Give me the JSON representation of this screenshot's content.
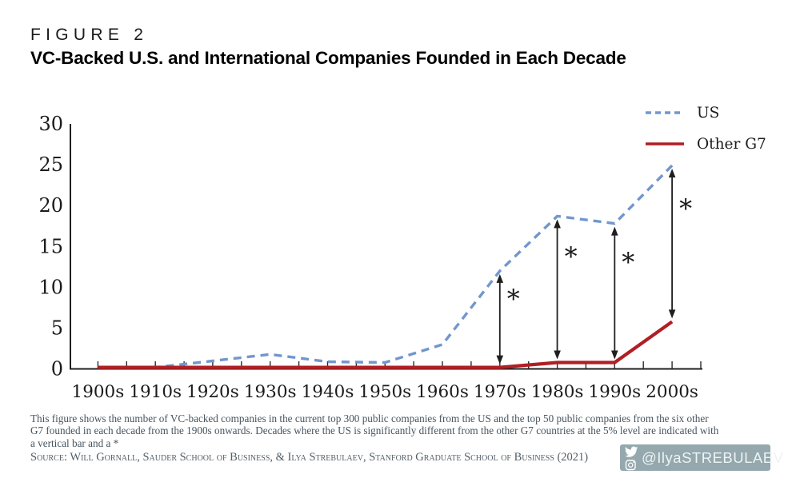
{
  "header": {
    "figure_label": "FIGURE 2",
    "title": "VC-Backed U.S. and International Companies Founded in Each Decade"
  },
  "chart_data": {
    "type": "line",
    "title": "VC-Backed U.S. and International Companies Founded in Each Decade",
    "categories": [
      "1900s",
      "1910s",
      "1920s",
      "1930s",
      "1940s",
      "1950s",
      "1960s",
      "1970s",
      "1980s",
      "1990s",
      "2000s"
    ],
    "series": [
      {
        "name": "US",
        "line_style": "dashed",
        "color": "#7296ce",
        "values": [
          0,
          0.1,
          1,
          1.8,
          0.9,
          0.8,
          3,
          12,
          18.7,
          17.8,
          24.9
        ]
      },
      {
        "name": "Other G7",
        "line_style": "solid",
        "color": "#b01f24",
        "values": [
          0,
          0,
          0,
          0,
          0,
          0,
          0,
          0,
          0.8,
          0.8,
          5.8
        ]
      }
    ],
    "ylim": [
      0,
      30
    ],
    "yticks": [
      0,
      5,
      10,
      15,
      20,
      25,
      30
    ],
    "grid": false,
    "legend_position": "top-right",
    "significance": {
      "symbol": "*",
      "decades": [
        "1970s",
        "1980s",
        "1990s",
        "2000s"
      ]
    }
  },
  "footnote": "This figure shows the number of VC-backed companies in the current top 300 public companies from the US and the top 50 public companies from the six other\nG7 founded in each decade from the 1900s onwards. Decades where the US is significantly different from the other G7 countries at the 5% level are indicated with\na vertical bar and a *",
  "source": "Source: Will Gornall, Sauder School of Business, & Ilya Strebulaev, Stanford Graduate School of Business (2021)",
  "badge": {
    "handle": "@IlyaSTREBULAEV"
  }
}
